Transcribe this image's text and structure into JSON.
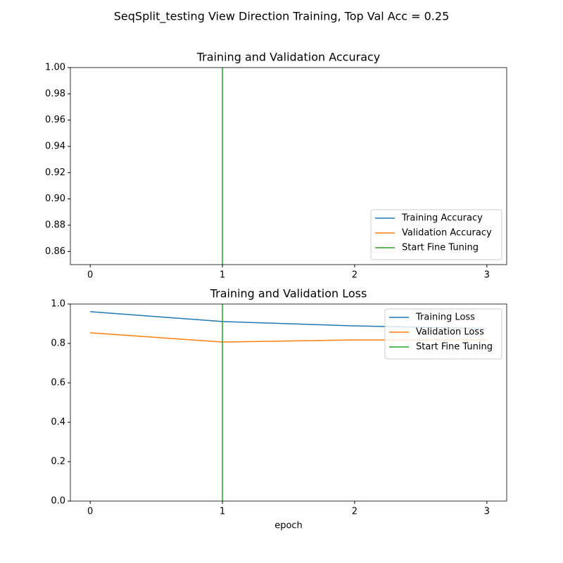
{
  "title": "SeqSplit_testing View Direction Training, Top Val Acc = 0.25",
  "chart_data": [
    {
      "type": "line",
      "title": "Training and Validation Accuracy",
      "x": [
        0,
        1,
        2,
        3
      ],
      "series": [
        {
          "name": "Training Accuracy",
          "color": "#1f77b4",
          "values": [
            null,
            null,
            null,
            null
          ]
        },
        {
          "name": "Validation Accuracy",
          "color": "#ff7f0e",
          "values": [
            null,
            null,
            null,
            null
          ]
        },
        {
          "name": "Start Fine Tuning",
          "color": "#2ca02c",
          "x": [
            1,
            1
          ],
          "values": [
            0.85,
            1.0
          ]
        }
      ],
      "xlim": [
        -0.15,
        3.15
      ],
      "xticks": [
        0,
        1,
        2,
        3
      ],
      "ylim": [
        0.85,
        1.0
      ],
      "yticks": [
        0.86,
        0.88,
        {
          "value": 0.9,
          "label": "0.90"
        },
        0.92,
        0.94,
        0.96,
        0.98,
        {
          "value": 1,
          "label": "1.00"
        }
      ],
      "legend": "lower right"
    },
    {
      "type": "line",
      "title": "Training and Validation Loss",
      "xlabel": "epoch",
      "x": [
        0,
        1,
        2,
        3
      ],
      "series": [
        {
          "name": "Training Loss",
          "color": "#1f77b4",
          "values": [
            0.961,
            0.911,
            0.889,
            0.875
          ]
        },
        {
          "name": "Validation Loss",
          "color": "#ff7f0e",
          "values": [
            0.854,
            0.807,
            0.818,
            0.818
          ]
        },
        {
          "name": "Start Fine Tuning",
          "color": "#2ca02c",
          "x": [
            1,
            1
          ],
          "values": [
            0,
            1
          ]
        }
      ],
      "xlim": [
        -0.15,
        3.15
      ],
      "xticks": [
        0,
        1,
        2,
        3
      ],
      "ylim": [
        0,
        1
      ],
      "yticks": [
        {
          "value": 0,
          "label": "0.0"
        },
        0.2,
        0.4,
        0.6,
        0.8,
        {
          "value": 1,
          "label": "1.0"
        }
      ],
      "legend": "upper right"
    }
  ]
}
